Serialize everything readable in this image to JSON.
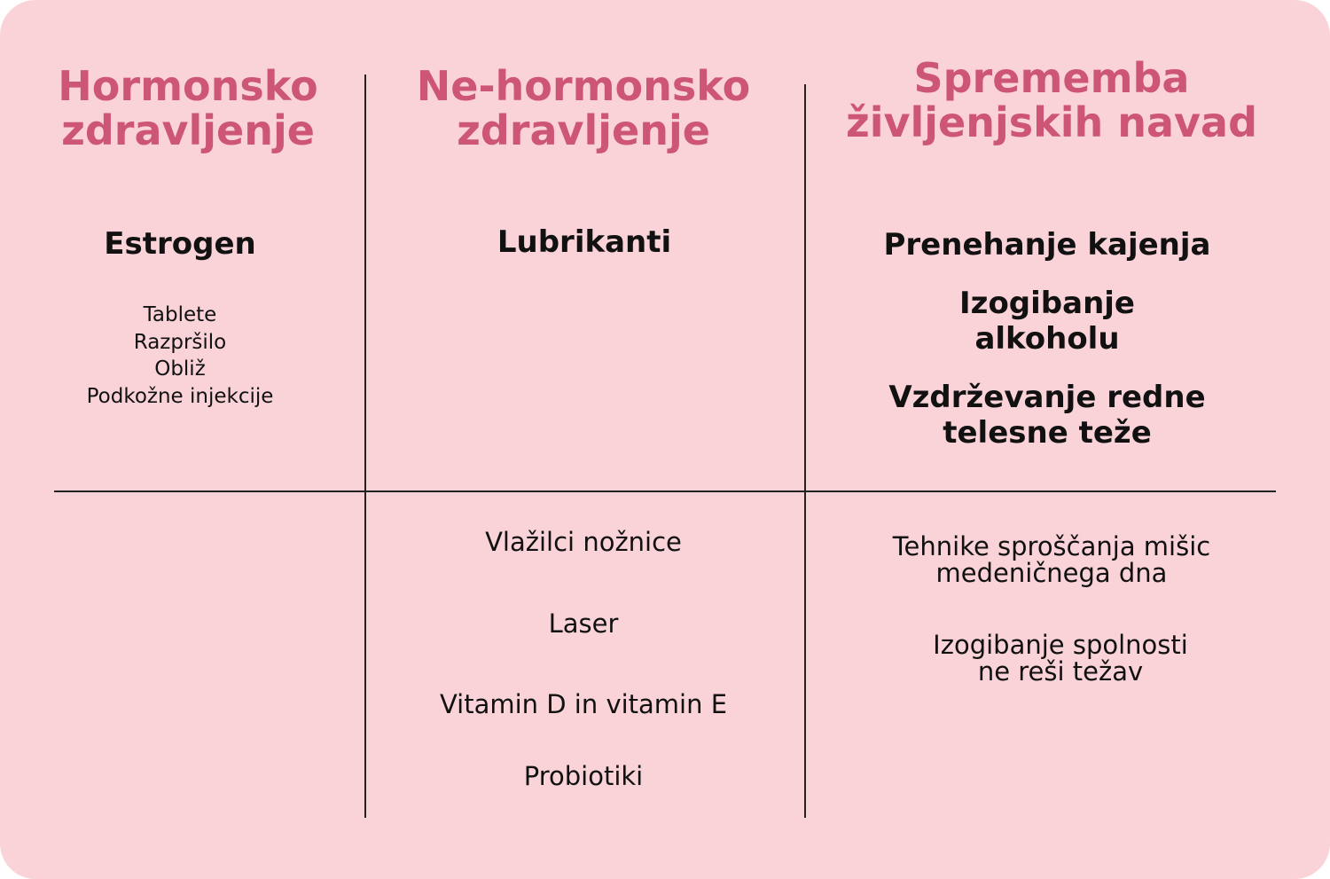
{
  "columns": [
    {
      "heading": [
        "Hormonsko",
        "zdravljenje"
      ],
      "top_items": [
        "Estrogen"
      ],
      "sub_items": [
        "Tablete",
        "Razpršilo",
        "Obliž",
        "Podkožne injekcije"
      ],
      "bottom_items": []
    },
    {
      "heading": [
        "Ne-hormonsko",
        "zdravljenje"
      ],
      "top_items": [
        "Lubrikanti"
      ],
      "bottom_items": [
        "Vlažilci nožnice",
        "Laser",
        "Vitamin D in vitamin E",
        "Probiotiki"
      ]
    },
    {
      "heading": [
        "Sprememba",
        "življenjskih navad"
      ],
      "top_items": [
        [
          "Prenehanje kajenja"
        ],
        [
          "Izogibanje",
          "alkoholu"
        ],
        [
          "Vzdrževanje redne",
          "telesne teže"
        ]
      ],
      "bottom_items": [
        [
          "Tehnike sproščanja mišic",
          "medeničnega dna"
        ],
        [
          "Izogibanje spolnosti",
          "ne reši težav"
        ]
      ]
    }
  ],
  "colors": {
    "background": "#fad3d8",
    "heading": "#cd5575",
    "text": "#111111",
    "lines": "#222222"
  }
}
